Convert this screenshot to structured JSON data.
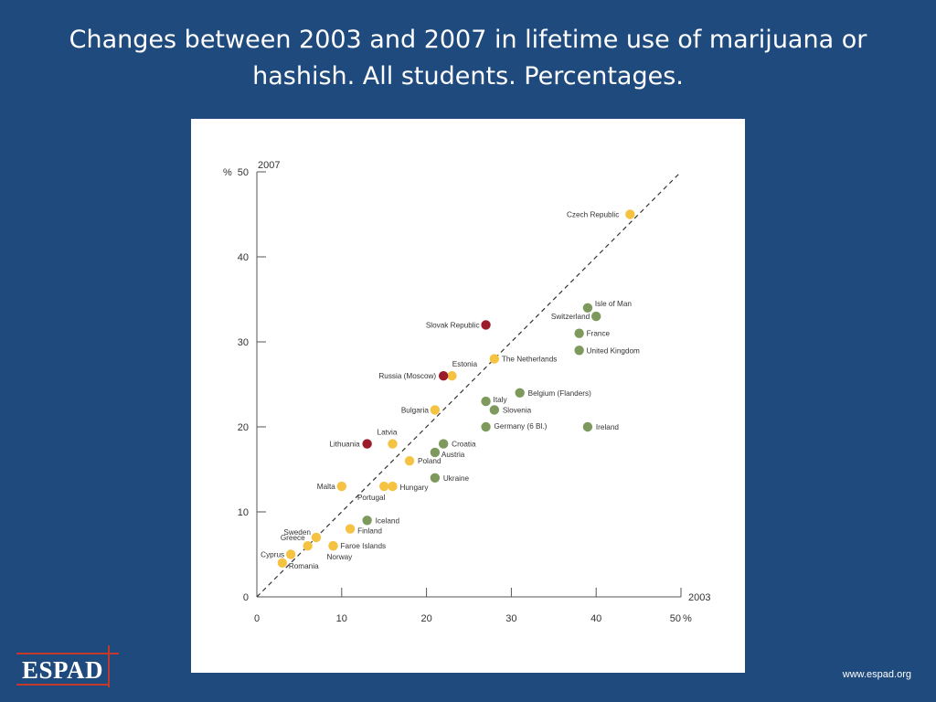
{
  "slide": {
    "title": "Changes between 2003 and 2007 in lifetime use of marijuana or hashish. All students. Percentages.",
    "logo_text": "ESPAD",
    "footer_url": "www.espad.org"
  },
  "colors": {
    "background": "#1f4a7e",
    "increase": "#f5c242",
    "decrease": "#7d9a5c",
    "large_increase": "#9b1b2a"
  },
  "chart_data": {
    "type": "scatter",
    "title": "",
    "xlabel": "2003",
    "ylabel": "2007",
    "x_unit": "%",
    "y_unit": "%",
    "xlim": [
      0,
      50
    ],
    "ylim": [
      0,
      50
    ],
    "x_ticks": [
      "0",
      "10",
      "20",
      "30",
      "40",
      "50"
    ],
    "y_ticks": [
      "0",
      "10",
      "20",
      "30",
      "40",
      "50"
    ],
    "reference_line": "diagonal-dashed",
    "grid": false,
    "points": [
      {
        "label": "Czech Republic",
        "x": 44,
        "y": 45,
        "group": "increase"
      },
      {
        "label": "Isle of Man",
        "x": 39,
        "y": 34,
        "group": "decrease"
      },
      {
        "label": "Switzerland",
        "x": 40,
        "y": 33,
        "group": "decrease"
      },
      {
        "label": "France",
        "x": 38,
        "y": 31,
        "group": "decrease"
      },
      {
        "label": "United Kingdom",
        "x": 38,
        "y": 29,
        "group": "decrease"
      },
      {
        "label": "Slovak Republic",
        "x": 27,
        "y": 32,
        "group": "large_increase"
      },
      {
        "label": "The Netherlands",
        "x": 28,
        "y": 28,
        "group": "increase"
      },
      {
        "label": "Estonia",
        "x": 23,
        "y": 26,
        "group": "increase"
      },
      {
        "label": "Russia (Moscow)",
        "x": 22,
        "y": 26,
        "group": "large_increase"
      },
      {
        "label": "Belgium (Flanders)",
        "x": 31,
        "y": 24,
        "group": "decrease"
      },
      {
        "label": "Italy",
        "x": 27,
        "y": 23,
        "group": "decrease"
      },
      {
        "label": "Slovenia",
        "x": 28,
        "y": 22,
        "group": "decrease"
      },
      {
        "label": "Bulgaria",
        "x": 21,
        "y": 22,
        "group": "increase"
      },
      {
        "label": "Germany (6 Bl.)",
        "x": 27,
        "y": 20,
        "group": "decrease"
      },
      {
        "label": "Ireland",
        "x": 39,
        "y": 20,
        "group": "decrease"
      },
      {
        "label": "Latvia",
        "x": 16,
        "y": 18,
        "group": "increase"
      },
      {
        "label": "Lithuania",
        "x": 13,
        "y": 18,
        "group": "large_increase"
      },
      {
        "label": "Croatia",
        "x": 22,
        "y": 18,
        "group": "decrease"
      },
      {
        "label": "Austria",
        "x": 21,
        "y": 17,
        "group": "decrease"
      },
      {
        "label": "Poland",
        "x": 18,
        "y": 16,
        "group": "increase"
      },
      {
        "label": "Ukraine",
        "x": 21,
        "y": 14,
        "group": "decrease"
      },
      {
        "label": "Malta",
        "x": 10,
        "y": 13,
        "group": "increase"
      },
      {
        "label": "Portugal",
        "x": 15,
        "y": 13,
        "group": "increase"
      },
      {
        "label": "Hungary",
        "x": 16,
        "y": 13,
        "group": "increase"
      },
      {
        "label": "Iceland",
        "x": 13,
        "y": 9,
        "group": "decrease"
      },
      {
        "label": "Finland",
        "x": 11,
        "y": 8,
        "group": "increase"
      },
      {
        "label": "Sweden",
        "x": 7,
        "y": 7,
        "group": "increase"
      },
      {
        "label": "Greece",
        "x": 6,
        "y": 6,
        "group": "increase"
      },
      {
        "label": "Faroe Islands",
        "x": 9,
        "y": 6,
        "group": "increase"
      },
      {
        "label": "Norway",
        "x": 9,
        "y": 6,
        "group": "increase"
      },
      {
        "label": "Cyprus",
        "x": 4,
        "y": 5,
        "group": "increase"
      },
      {
        "label": "Romania",
        "x": 3,
        "y": 4,
        "group": "increase"
      }
    ]
  }
}
